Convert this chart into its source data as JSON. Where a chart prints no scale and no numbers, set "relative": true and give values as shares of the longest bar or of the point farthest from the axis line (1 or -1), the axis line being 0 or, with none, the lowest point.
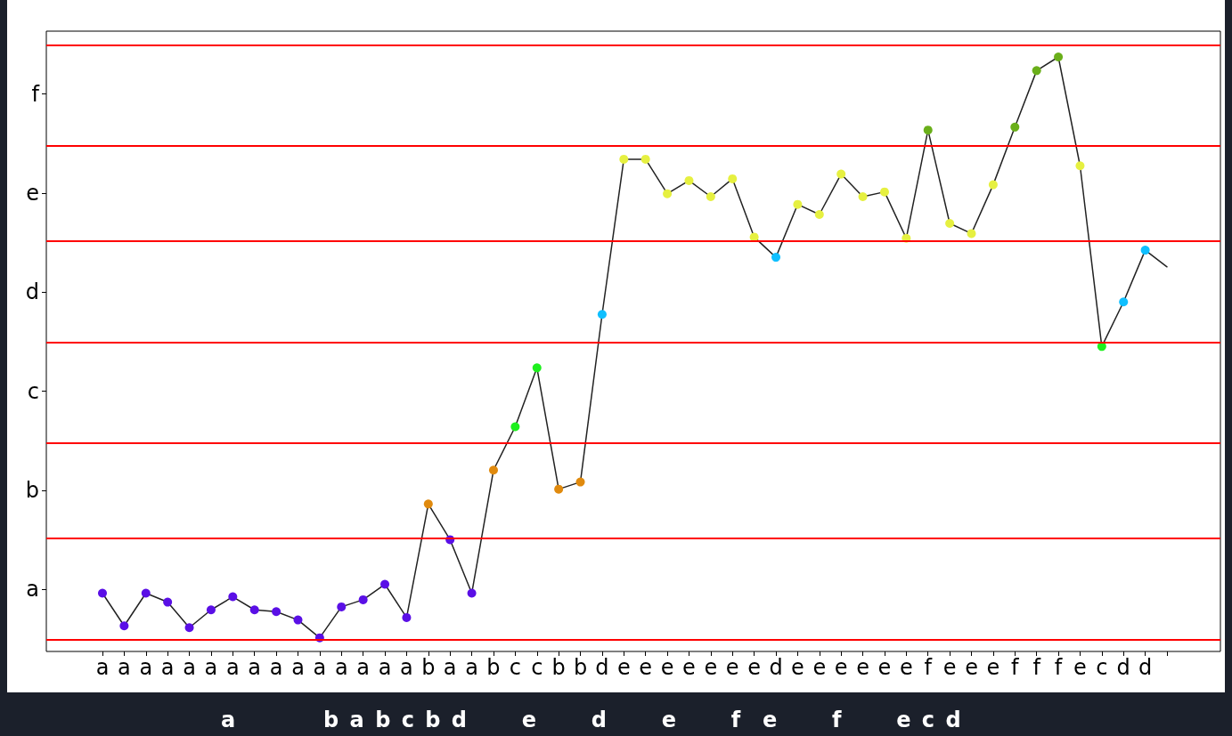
{
  "chart_data": {
    "type": "line",
    "relative": true,
    "categories": [
      "a",
      "a",
      "a",
      "a",
      "a",
      "a",
      "a",
      "a",
      "a",
      "a",
      "a",
      "a",
      "a",
      "a",
      "a",
      "b",
      "a",
      "a",
      "b",
      "c",
      "c",
      "b",
      "b",
      "d",
      "e",
      "e",
      "e",
      "e",
      "e",
      "e",
      "e",
      "d",
      "e",
      "e",
      "e",
      "e",
      "e",
      "e",
      "f",
      "e",
      "e",
      "e",
      "f",
      "f",
      "f",
      "e",
      "c",
      "d",
      "d",
      null
    ],
    "y_categories": [
      "f",
      "e",
      "d",
      "c",
      "b",
      "a"
    ],
    "series": [
      {
        "color": "#222222",
        "values": [
          0.098,
          0.043,
          0.098,
          0.083,
          0.04,
          0.07,
          0.092,
          0.07,
          0.067,
          0.053,
          0.023,
          0.075,
          0.087,
          0.113,
          0.057,
          0.248,
          0.188,
          0.098,
          0.305,
          0.378,
          0.477,
          0.273,
          0.285,
          0.567,
          0.828,
          0.828,
          0.77,
          0.792,
          0.765,
          0.795,
          0.697,
          0.663,
          0.752,
          0.735,
          0.803,
          0.765,
          0.773,
          0.695,
          0.877,
          0.72,
          0.703,
          0.785,
          0.882,
          0.977,
          1,
          0.817,
          0.513,
          0.588,
          0.675,
          0.647
        ],
        "colors": [
          "#5a0fe6",
          "#5a0fe6",
          "#5a0fe6",
          "#5a0fe6",
          "#5a0fe6",
          "#5a0fe6",
          "#5a0fe6",
          "#5a0fe6",
          "#5a0fe6",
          "#5a0fe6",
          "#5a0fe6",
          "#5a0fe6",
          "#5a0fe6",
          "#5a0fe6",
          "#5a0fe6",
          "#e08a0e",
          "#5a0fe6",
          "#5a0fe6",
          "#e08a0e",
          "#1ef01e",
          "#1ef01e",
          "#e08a0e",
          "#e08a0e",
          "#0fbfff",
          "#e6f040",
          "#e6f040",
          "#e6f040",
          "#e6f040",
          "#e6f040",
          "#e6f040",
          "#e6f040",
          "#0fbfff",
          "#e6f040",
          "#e6f040",
          "#e6f040",
          "#e6f040",
          "#e6f040",
          "#e6f040",
          "#6aaf1a",
          "#e6f040",
          "#e6f040",
          "#e6f040",
          "#6aaf1a",
          "#6aaf1a",
          "#6aaf1a",
          "#e6f040",
          "#1ef01e",
          "#0fbfff",
          "#0fbfff",
          null
        ]
      }
    ],
    "ref_lines": [
      {
        "axis": "y",
        "value": 0.022,
        "color": "#ff0000"
      },
      {
        "axis": "y",
        "value": 0.188,
        "color": "#ff0000"
      },
      {
        "axis": "y",
        "value": 0.35,
        "color": "#ff0000"
      },
      {
        "axis": "y",
        "value": 0.522,
        "color": "#ff0000"
      },
      {
        "axis": "y",
        "value": 0.688,
        "color": "#ff0000"
      },
      {
        "axis": "y",
        "value": 0.85,
        "color": "#ff0000"
      },
      {
        "axis": "y",
        "value": 1.022,
        "color": "#ff0000"
      }
    ],
    "marker": "circle",
    "line_style": "solid",
    "annotations": [
      "a        b a b c b d     e     d     e     f  e     f     e c d"
    ]
  }
}
